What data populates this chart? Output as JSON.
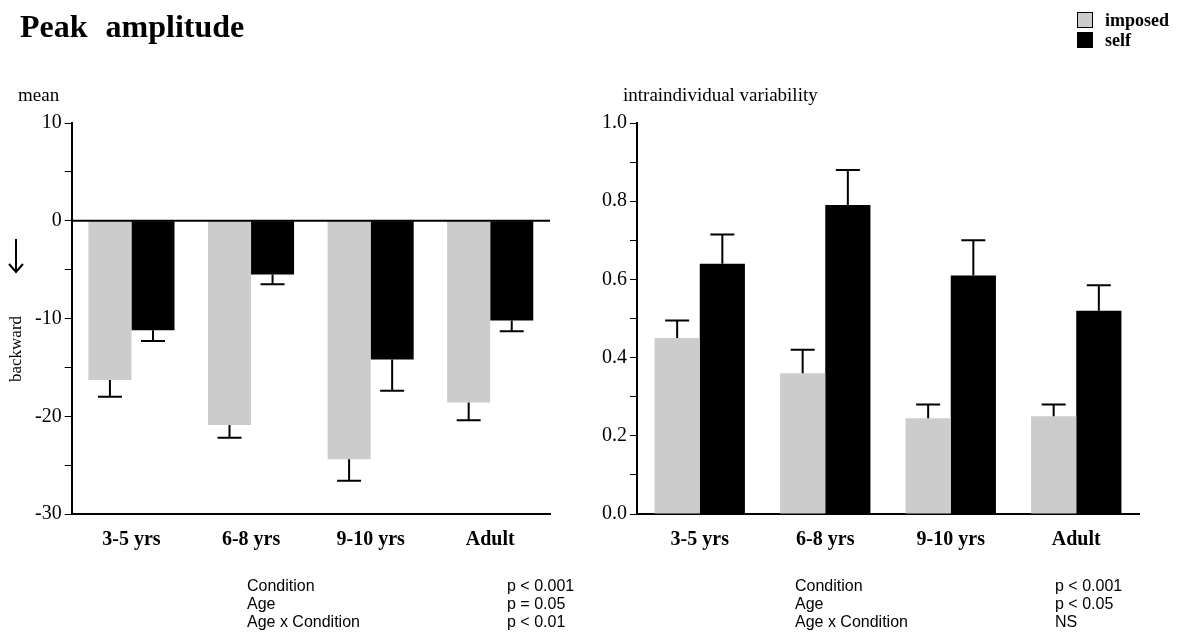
{
  "chart_data": [
    {
      "type": "bar",
      "title": "Peak amplitude",
      "subtitle": "mean",
      "ylabel": "backward",
      "categories": [
        "3-5 yrs",
        "6-8 yrs",
        "9-10 yrs",
        "Adult"
      ],
      "series": [
        {
          "name": "imposed",
          "color": "#cccccc",
          "values": [
            -16.3,
            -20.9,
            -24.4,
            -18.6
          ],
          "errors": [
            [
              -18.0,
              -16.3
            ],
            [
              -22.2,
              -20.9
            ],
            [
              -26.6,
              -24.4
            ],
            [
              -20.4,
              -18.6
            ]
          ]
        },
        {
          "name": "self",
          "color": "#000000",
          "values": [
            -11.2,
            -5.5,
            -14.2,
            -10.2
          ],
          "errors": [
            [
              -12.3,
              -11.2
            ],
            [
              -6.5,
              -5.5
            ],
            [
              -17.4,
              -14.2
            ],
            [
              -11.3,
              -10.2
            ]
          ]
        }
      ],
      "ylim": [
        -30,
        10
      ],
      "yticks": [
        -30,
        {
          "value": -25,
          "label": null
        },
        -20,
        {
          "value": -15,
          "label": null
        },
        -10,
        {
          "value": -5,
          "label": null
        },
        0,
        {
          "value": 5,
          "label": null
        },
        10
      ],
      "ref_lines": [
        {
          "axis": "y",
          "value": 0
        }
      ],
      "grid": false,
      "legend": "top right",
      "annotations": [
        "Condition",
        "p < 0.001",
        "Age",
        "p = 0.05",
        "Age x Condition",
        "p < 0.01"
      ]
    },
    {
      "type": "bar",
      "subtitle": "intraindividual variability",
      "categories": [
        "3-5 yrs",
        "6-8 yrs",
        "9-10 yrs",
        "Adult"
      ],
      "series": [
        {
          "name": "imposed",
          "color": "#cccccc",
          "values": [
            0.45,
            0.36,
            0.245,
            0.25
          ],
          "errors": [
            [
              0.45,
              0.495
            ],
            [
              0.36,
              0.42
            ],
            [
              0.245,
              0.28
            ],
            [
              0.25,
              0.28
            ]
          ]
        },
        {
          "name": "self",
          "color": "#000000",
          "values": [
            0.64,
            0.79,
            0.61,
            0.52
          ],
          "errors": [
            [
              0.64,
              0.715
            ],
            [
              0.79,
              0.88
            ],
            [
              0.61,
              0.7
            ],
            [
              0.52,
              0.585
            ]
          ]
        }
      ],
      "ylim": [
        0,
        1
      ],
      "yticks": [
        {
          "value": 0,
          "label": "0.0"
        },
        {
          "value": 0.1,
          "label": null
        },
        0.2,
        {
          "value": 0.3,
          "label": null
        },
        0.4,
        {
          "value": 0.5,
          "label": null
        },
        0.6,
        {
          "value": 0.7,
          "label": null
        },
        0.8,
        {
          "value": 0.9,
          "label": null
        },
        {
          "value": 1,
          "label": "1.0"
        }
      ],
      "grid": false,
      "legend": "top right",
      "annotations": [
        "Condition",
        "p < 0.001",
        "Age",
        "p < 0.05",
        "Age x Condition",
        "NS"
      ]
    }
  ]
}
